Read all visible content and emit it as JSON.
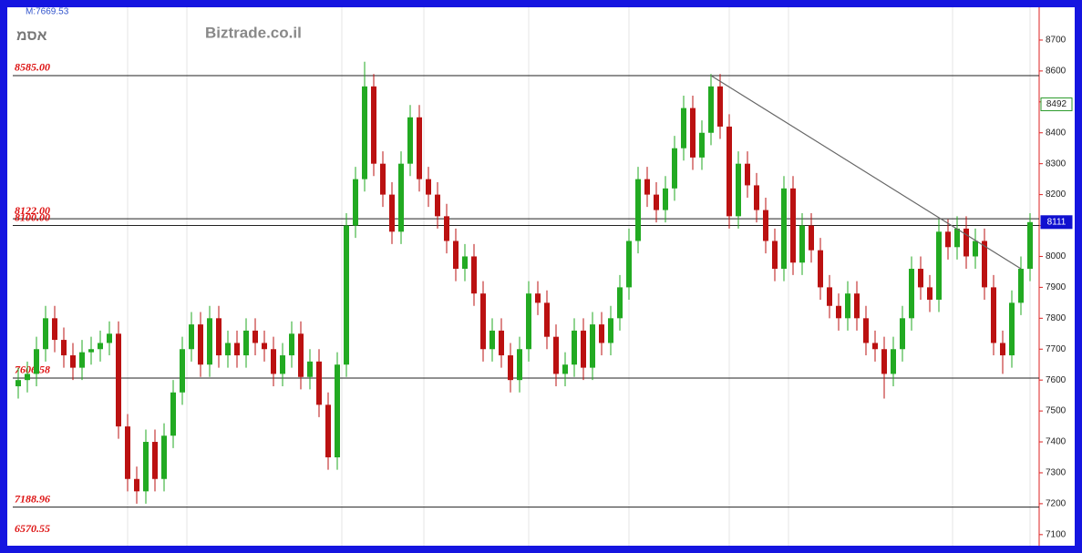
{
  "chart_data": {
    "type": "candlestick",
    "title": "אסמ",
    "watermark": "Biztrade.co.il",
    "annotation": "M:7669.53",
    "up_color": "#22aa22",
    "down_color": "#bb1111",
    "ylim": [
      7070,
      8806
    ],
    "yticks": [
      7100,
      7200,
      7300,
      7400,
      7500,
      7600,
      7700,
      7800,
      7900,
      8000,
      8100,
      8200,
      8300,
      8400,
      8500,
      8600,
      8700
    ],
    "open": [
      7580,
      7600,
      7620,
      7700,
      7800,
      7730,
      7680,
      7640,
      7690,
      7700,
      7720,
      7750,
      7450,
      7280,
      7240,
      7400,
      7280,
      7420,
      7560,
      7700,
      7780,
      7650,
      7800,
      7680,
      7720,
      7680,
      7760,
      7720,
      7700,
      7620,
      7680,
      7750,
      7610,
      7660,
      7520,
      7350,
      7650,
      8100,
      8250,
      8550,
      8300,
      8200,
      8080,
      8300,
      8450,
      8250,
      8200,
      8130,
      8050,
      7960,
      8000,
      7880,
      7700,
      7760,
      7680,
      7600,
      7700,
      7880,
      7850,
      7740,
      7620,
      7650,
      7760,
      7640,
      7780,
      7720,
      7800,
      7900,
      8050,
      8250,
      8200,
      8150,
      8220,
      8350,
      8480,
      8320,
      8400,
      8550,
      8420,
      8130,
      8300,
      8230,
      8150,
      8050,
      7960,
      8220,
      7980,
      8100,
      8020,
      7900,
      7840,
      7800,
      7880,
      7800,
      7720,
      7700,
      7620,
      7700,
      7800,
      7960,
      7900,
      7860,
      8080,
      8030,
      8090,
      8000,
      8050,
      7900,
      7720,
      7680,
      7850,
      7960
    ],
    "high": [
      7640,
      7660,
      7740,
      7840,
      7840,
      7770,
      7720,
      7730,
      7740,
      7760,
      7790,
      7790,
      7490,
      7320,
      7440,
      7440,
      7460,
      7600,
      7740,
      7820,
      7820,
      7840,
      7840,
      7760,
      7760,
      7800,
      7800,
      7760,
      7740,
      7720,
      7790,
      7790,
      7700,
      7700,
      7560,
      7690,
      8140,
      8290,
      8630,
      8590,
      8340,
      8240,
      8340,
      8490,
      8490,
      8290,
      8240,
      8170,
      8090,
      8040,
      8040,
      7920,
      7800,
      7800,
      7720,
      7740,
      7920,
      7920,
      7890,
      7780,
      7690,
      7800,
      7800,
      7820,
      7820,
      7840,
      7940,
      8090,
      8290,
      8290,
      8240,
      8260,
      8390,
      8520,
      8520,
      8440,
      8590,
      8590,
      8460,
      8340,
      8340,
      8270,
      8190,
      8090,
      8260,
      8260,
      8140,
      8140,
      8060,
      7940,
      7880,
      7920,
      7920,
      7840,
      7760,
      7740,
      7740,
      7840,
      8000,
      8000,
      7940,
      8120,
      8120,
      8130,
      8130,
      8090,
      8090,
      7940,
      7760,
      7890,
      8000,
      8140
    ],
    "low": [
      7540,
      7560,
      7580,
      7660,
      7690,
      7640,
      7600,
      7600,
      7650,
      7660,
      7680,
      7410,
      7240,
      7200,
      7200,
      7240,
      7240,
      7380,
      7520,
      7660,
      7610,
      7610,
      7640,
      7640,
      7640,
      7640,
      7680,
      7660,
      7580,
      7580,
      7640,
      7570,
      7570,
      7480,
      7310,
      7310,
      7610,
      8060,
      8210,
      8260,
      8160,
      8040,
      8040,
      8260,
      8210,
      8160,
      8090,
      8010,
      7920,
      7920,
      7840,
      7660,
      7660,
      7640,
      7560,
      7560,
      7660,
      7810,
      7700,
      7580,
      7580,
      7610,
      7600,
      7600,
      7680,
      7680,
      7760,
      7860,
      8010,
      8160,
      8110,
      8110,
      8180,
      8310,
      8280,
      8280,
      8360,
      8380,
      8090,
      8090,
      8190,
      8110,
      8010,
      7920,
      7920,
      7940,
      7940,
      7980,
      7860,
      7800,
      7760,
      7760,
      7760,
      7680,
      7660,
      7540,
      7580,
      7660,
      7760,
      7860,
      7820,
      7820,
      7990,
      7990,
      7960,
      7960,
      7860,
      7680,
      7620,
      7640,
      7810,
      7920
    ],
    "close": [
      7600,
      7620,
      7700,
      7800,
      7730,
      7680,
      7640,
      7690,
      7700,
      7720,
      7750,
      7450,
      7280,
      7240,
      7400,
      7280,
      7420,
      7560,
      7700,
      7780,
      7650,
      7800,
      7680,
      7720,
      7680,
      7760,
      7720,
      7700,
      7620,
      7680,
      7750,
      7610,
      7660,
      7520,
      7350,
      7650,
      8100,
      8250,
      8550,
      8300,
      8200,
      8080,
      8300,
      8450,
      8250,
      8200,
      8130,
      8050,
      7960,
      8000,
      7880,
      7700,
      7760,
      7680,
      7600,
      7700,
      7880,
      7850,
      7740,
      7620,
      7650,
      7760,
      7640,
      7780,
      7720,
      7800,
      7900,
      8050,
      8250,
      8200,
      8150,
      8220,
      8350,
      8480,
      8320,
      8400,
      8550,
      8420,
      8130,
      8300,
      8230,
      8150,
      8050,
      7960,
      8220,
      7980,
      8100,
      8020,
      7900,
      7840,
      7800,
      7880,
      7800,
      7720,
      7700,
      7620,
      7700,
      7800,
      7960,
      7900,
      7860,
      8080,
      8030,
      8090,
      8000,
      8050,
      7900,
      7720,
      7680,
      7850,
      7960,
      8111
    ],
    "levels": [
      {
        "value": 8585,
        "label": "8585.00"
      },
      {
        "value": 8122,
        "label": "8122.00"
      },
      {
        "value": 8100,
        "label": "8100.00"
      },
      {
        "value": 7606.58,
        "label": "7606.58"
      },
      {
        "value": 7188.96,
        "label": "7188.96"
      },
      {
        "value": 6570.55,
        "label": "6570.55"
      }
    ],
    "trend_line": {
      "from_index": 76,
      "from_value": 8585,
      "to_index": 110,
      "to_value": 7960
    },
    "price_tags": [
      {
        "value": 8492,
        "color": "#2a9a2a"
      },
      {
        "value": 8111,
        "color": "#1010d0"
      }
    ]
  }
}
